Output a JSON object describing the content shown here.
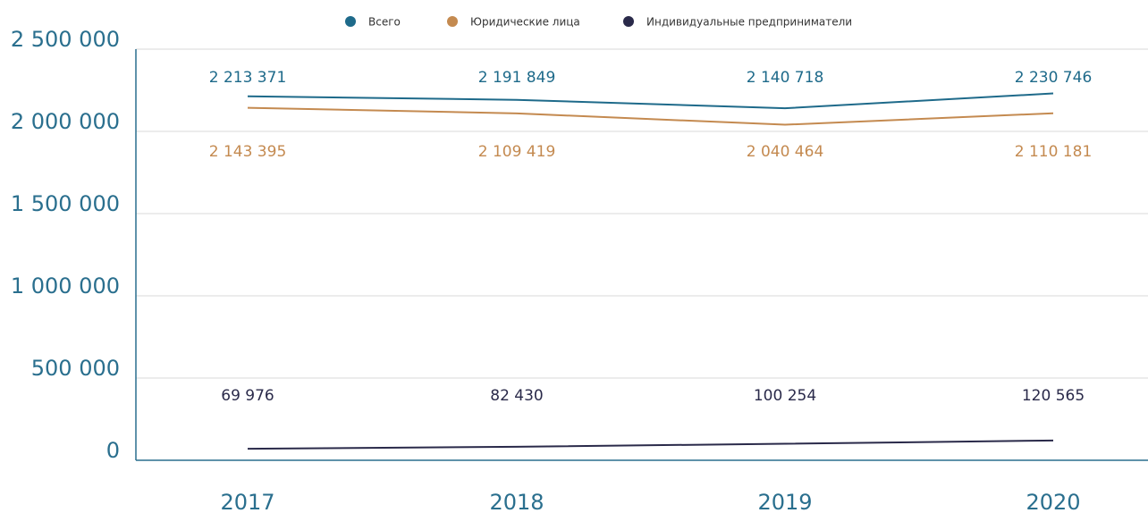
{
  "chart_data": {
    "type": "line",
    "categories": [
      "2017",
      "2018",
      "2019",
      "2020"
    ],
    "series": [
      {
        "name": "Всего",
        "color": "#1e6a8a",
        "values": [
          2213371,
          2191849,
          2140718,
          2230746
        ],
        "value_labels": [
          "2 213 371",
          "2 191 849",
          "2 140 718",
          "2 230 746"
        ]
      },
      {
        "name": "Юридические лица",
        "color": "#c48a50",
        "values": [
          2143395,
          2109419,
          2040464,
          2110181
        ],
        "value_labels": [
          "2 143 395",
          "2 109 419",
          "2 040 464",
          "2 110 181"
        ]
      },
      {
        "name": "Индивидуальные предприниматели",
        "color": "#2a2a4a",
        "values": [
          69976,
          82430,
          100254,
          120565
        ],
        "value_labels": [
          "69 976",
          "82 430",
          "100 254",
          "120 565"
        ]
      }
    ],
    "ylim": [
      0,
      2500000
    ],
    "yticks": [
      0,
      {
        "value": 500000,
        "label": "500 000"
      },
      {
        "value": 1000000,
        "label": "1 000 000"
      },
      {
        "value": 1500000,
        "label": "1 500 000"
      },
      {
        "value": 2000000,
        "label": "2 000 000"
      },
      {
        "value": 2500000,
        "label": "2 500 000"
      }
    ],
    "grid": true
  }
}
